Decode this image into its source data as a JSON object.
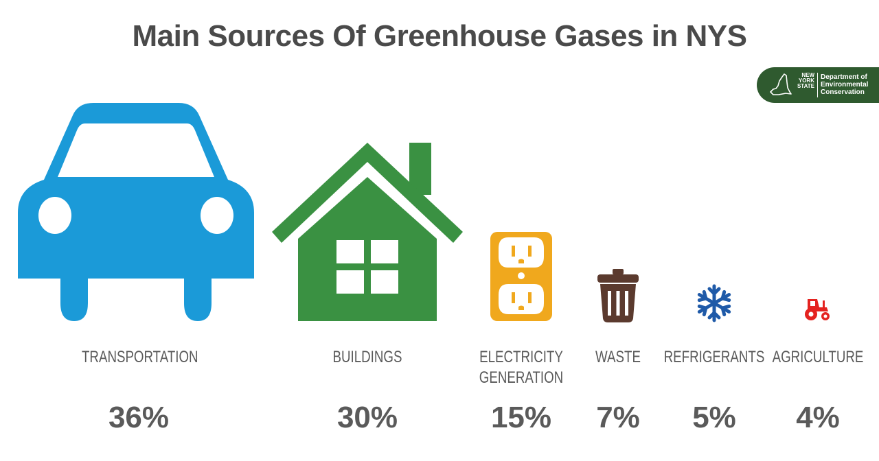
{
  "title": "Main Sources Of Greenhouse Gases in NYS",
  "logo": {
    "state_text": [
      "NEW",
      "YORK",
      "STATE"
    ],
    "dept_text": [
      "Department of",
      "Environmental",
      "Conservation"
    ],
    "color": "#2f5a2f"
  },
  "chart_data": {
    "type": "table",
    "title": "Main Sources Of Greenhouse Gases in NYS",
    "categories": [
      "TRANSPORTATION",
      "BUILDINGS",
      "ELECTRICITY GENERATION",
      "WASTE",
      "REFRIGERANTS",
      "AGRICULTURE"
    ],
    "values": [
      36,
      30,
      15,
      7,
      5,
      4
    ],
    "value_labels": [
      "36%",
      "30%",
      "15%",
      "7%",
      "5%",
      "4%"
    ],
    "items": [
      {
        "label_lines": [
          "TRANSPORTATION"
        ],
        "value_label": "36%",
        "icon": "car-icon",
        "color": "#1b9ad8"
      },
      {
        "label_lines": [
          "BUILDINGS"
        ],
        "value_label": "30%",
        "icon": "house-icon",
        "color": "#3a9142"
      },
      {
        "label_lines": [
          "ELECTRICITY",
          "GENERATION"
        ],
        "value_label": "15%",
        "icon": "outlet-icon",
        "color": "#f0a81d"
      },
      {
        "label_lines": [
          "WASTE"
        ],
        "value_label": "7%",
        "icon": "trash-can-icon",
        "color": "#5b3a2e"
      },
      {
        "label_lines": [
          "REFRIGERANTS"
        ],
        "value_label": "5%",
        "icon": "snowflake-icon",
        "color": "#1f5aa8"
      },
      {
        "label_lines": [
          "AGRICULTURE"
        ],
        "value_label": "4%",
        "icon": "tractor-icon",
        "color": "#e42320"
      }
    ]
  }
}
